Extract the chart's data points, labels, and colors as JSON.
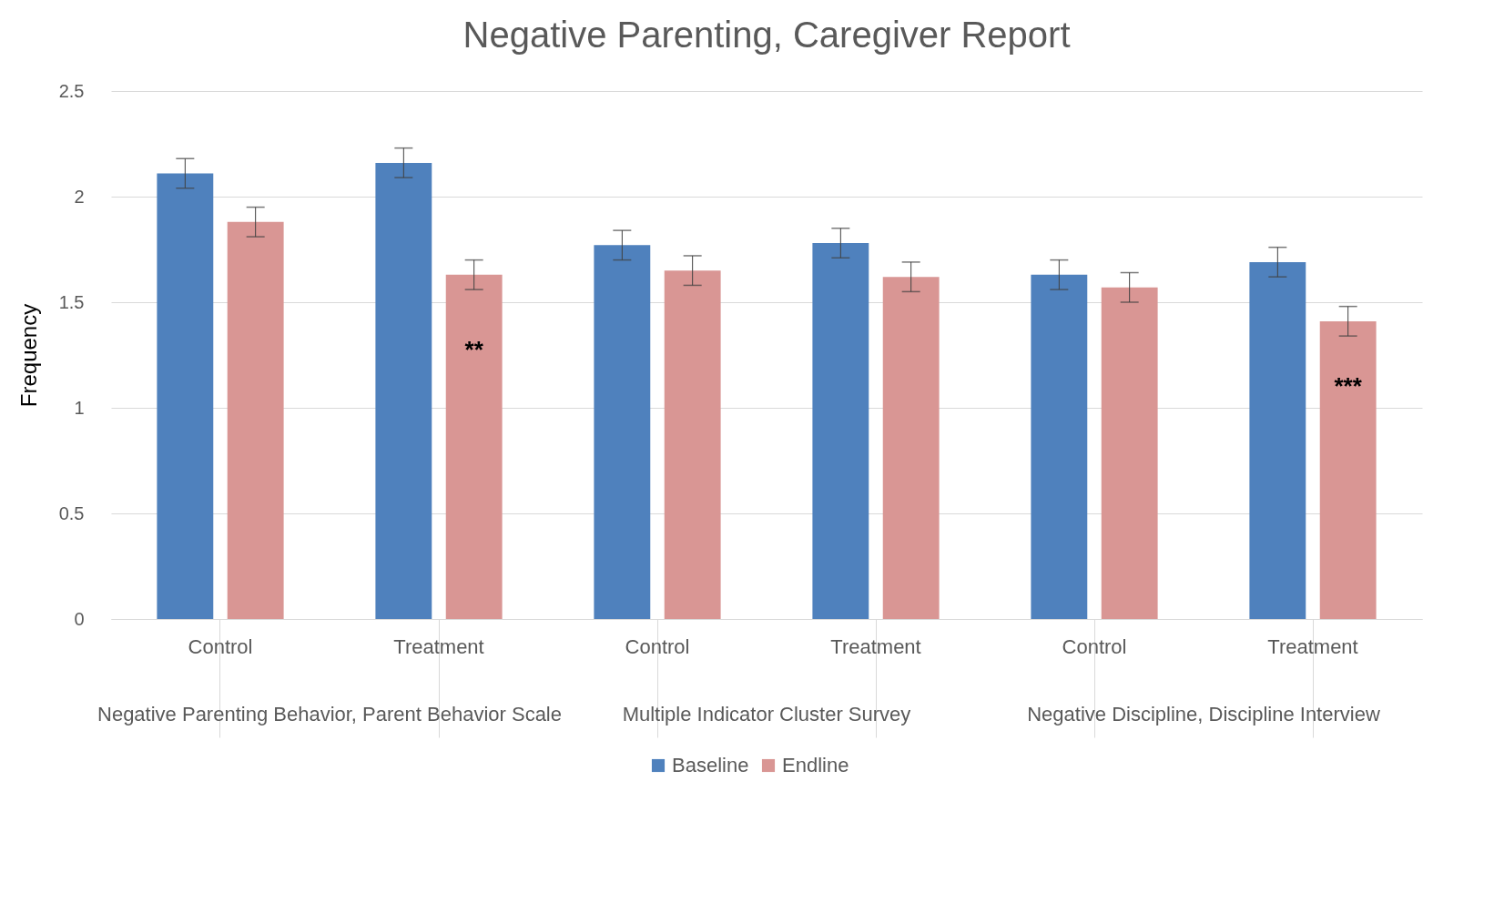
{
  "chart_data": {
    "type": "bar",
    "title": "Negative Parenting, Caregiver Report",
    "ylabel": "Frequency",
    "categories": [
      "Control",
      "Treatment",
      "Control",
      "Treatment",
      "Control",
      "Treatment"
    ],
    "annotations": [
      "Negative Parenting Behavior, Parent Behavior Scale",
      "Multiple Indicator Cluster Survey",
      "Negative Discipline, Discipline Interview"
    ],
    "series": [
      {
        "name": "Baseline",
        "color": "#4f81bd",
        "values": [
          2.11,
          2.16,
          1.77,
          1.78,
          1.63,
          1.69
        ],
        "errors": [
          0.07,
          0.07,
          0.07,
          0.07,
          0.07,
          0.07
        ]
      },
      {
        "name": "Endline",
        "color": "#d99694",
        "values": [
          1.88,
          1.63,
          1.65,
          1.62,
          1.57,
          1.41
        ],
        "errors": [
          0.07,
          0.07,
          0.07,
          0.07,
          0.07,
          0.07
        ],
        "value_labels": [
          null,
          "**",
          null,
          null,
          null,
          "***"
        ]
      }
    ],
    "ylim": [
      0,
      2.5
    ],
    "yticks": [
      0,
      0.5,
      1,
      1.5,
      2,
      2.5
    ],
    "grid": "y",
    "legend": "bottom"
  }
}
